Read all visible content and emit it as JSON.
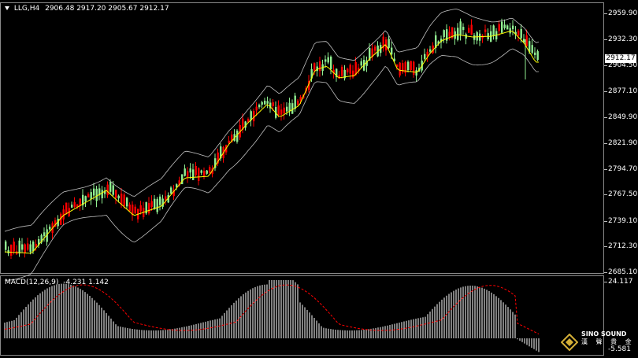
{
  "header": {
    "symbol": "LLG,H4",
    "ohlc": "2906.48 2917.20 2905.67 2912.17"
  },
  "macd": {
    "label": "MACD(12,26,9)",
    "values": "-4.231 1.142",
    "axis_top": "24.117",
    "axis_bottom": "-5.581"
  },
  "current_price": "2912.17",
  "colors": {
    "bull": "#90ee90",
    "bear": "#ff0000",
    "ma": "#ffff00",
    "band": "#c0c0c0",
    "signal": "#ff0000",
    "hist": "#ffffff"
  },
  "chart_data": {
    "type": "candlestick",
    "y_ticks": [
      "2959.90",
      "2932.30",
      "2904.50",
      "2877.10",
      "2849.90",
      "2821.90",
      "2794.70",
      "2767.50",
      "2739.10",
      "2712.30",
      "2685.10"
    ],
    "ylim": [
      2685.1,
      2959.9
    ],
    "indicators": [
      "Bollinger Bands",
      "Moving Average",
      "MACD(12,26,9)"
    ]
  },
  "logo": {
    "name": "SINO SOUND",
    "sub": "漢 聲 貴 金"
  }
}
